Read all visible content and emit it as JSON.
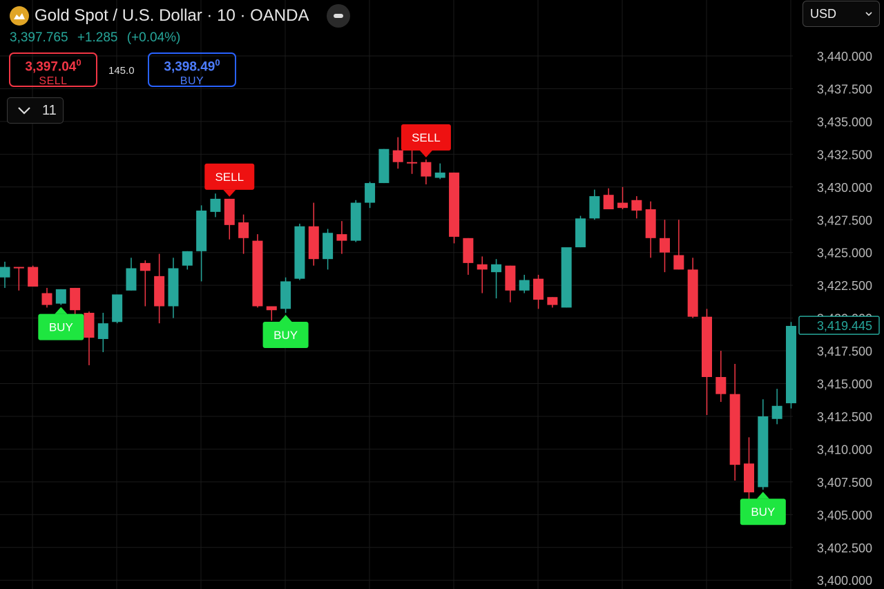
{
  "header": {
    "symbol_title": "Gold Spot / U.S. Dollar · 10 · OANDA",
    "last_price": "3,397.765",
    "change": "+1.285",
    "change_pct": "(+0.04%)"
  },
  "trade": {
    "sell_price": "3,397.04",
    "sell_price_small": "0",
    "sell_label": "SELL",
    "spread": "145.0",
    "buy_price": "3,398.49",
    "buy_price_small": "0",
    "buy_label": "BUY"
  },
  "indicators_toggle": {
    "count": "11"
  },
  "currency": {
    "selected": "USD"
  },
  "colors": {
    "up": "#26a69a",
    "down": "#f23645",
    "buy_marker": "#1ee640",
    "sell_marker": "#ee1111"
  },
  "chart_data": {
    "type": "candlestick",
    "ylim": [
      3398.5,
      3442.5
    ],
    "y_ticks": [
      "3,440.000",
      "3,437.500",
      "3,435.000",
      "3,432.500",
      "3,430.000",
      "3,427.500",
      "3,425.000",
      "3,422.500",
      "3,420.000",
      "3,417.500",
      "3,415.000",
      "3,412.500",
      "3,410.000",
      "3,407.500",
      "3,405.000",
      "3,402.500",
      "3,400.000"
    ],
    "y_tick_values": [
      3440,
      3437.5,
      3435,
      3432.5,
      3430,
      3427.5,
      3425,
      3422.5,
      3420,
      3417.5,
      3415,
      3412.5,
      3410,
      3407.5,
      3405,
      3402.5,
      3400
    ],
    "current_price_label": "3,419.445",
    "current_price": 3419.445,
    "candles": [
      {
        "o": 3423.1,
        "h": 3424.3,
        "l": 3422.3,
        "c": 3423.9
      },
      {
        "o": 3423.9,
        "h": 3423.9,
        "l": 3422.1,
        "c": 3423.8
      },
      {
        "o": 3423.9,
        "h": 3424.0,
        "l": 3422.6,
        "c": 3422.4
      },
      {
        "o": 3421.9,
        "h": 3422.3,
        "l": 3420.8,
        "c": 3421.0
      },
      {
        "o": 3421.1,
        "h": 3422.2,
        "l": 3421.0,
        "c": 3422.2
      },
      {
        "o": 3422.3,
        "h": 3422.3,
        "l": 3420.0,
        "c": 3420.6
      },
      {
        "o": 3420.4,
        "h": 3420.5,
        "l": 3416.4,
        "c": 3418.5
      },
      {
        "o": 3418.4,
        "h": 3420.4,
        "l": 3417.4,
        "c": 3419.6
      },
      {
        "o": 3419.7,
        "h": 3421.8,
        "l": 3419.6,
        "c": 3421.8
      },
      {
        "o": 3422.1,
        "h": 3424.6,
        "l": 3422.1,
        "c": 3423.8
      },
      {
        "o": 3424.2,
        "h": 3424.4,
        "l": 3420.9,
        "c": 3423.6
      },
      {
        "o": 3423.2,
        "h": 3424.9,
        "l": 3419.6,
        "c": 3420.9
      },
      {
        "o": 3420.9,
        "h": 3424.6,
        "l": 3420.0,
        "c": 3423.8
      },
      {
        "o": 3424.0,
        "h": 3425.1,
        "l": 3423.7,
        "c": 3425.1
      },
      {
        "o": 3425.1,
        "h": 3428.6,
        "l": 3422.8,
        "c": 3428.2
      },
      {
        "o": 3428.1,
        "h": 3429.5,
        "l": 3427.7,
        "c": 3429.1
      },
      {
        "o": 3429.1,
        "h": 3429.1,
        "l": 3426.0,
        "c": 3427.1
      },
      {
        "o": 3427.3,
        "h": 3427.9,
        "l": 3424.9,
        "c": 3426.1
      },
      {
        "o": 3425.9,
        "h": 3426.4,
        "l": 3420.8,
        "c": 3420.9
      },
      {
        "o": 3420.9,
        "h": 3420.9,
        "l": 3419.8,
        "c": 3420.6
      },
      {
        "o": 3420.7,
        "h": 3423.1,
        "l": 3420.4,
        "c": 3422.8
      },
      {
        "o": 3423.0,
        "h": 3427.2,
        "l": 3422.9,
        "c": 3427.0
      },
      {
        "o": 3427.0,
        "h": 3428.8,
        "l": 3424.0,
        "c": 3424.5
      },
      {
        "o": 3424.5,
        "h": 3426.8,
        "l": 3423.7,
        "c": 3426.5
      },
      {
        "o": 3426.4,
        "h": 3427.4,
        "l": 3424.9,
        "c": 3425.9
      },
      {
        "o": 3425.9,
        "h": 3429.0,
        "l": 3425.8,
        "c": 3428.8
      },
      {
        "o": 3428.8,
        "h": 3430.4,
        "l": 3428.4,
        "c": 3430.3
      },
      {
        "o": 3430.3,
        "h": 3432.9,
        "l": 3430.3,
        "c": 3432.9
      },
      {
        "o": 3432.8,
        "h": 3433.8,
        "l": 3431.4,
        "c": 3431.9
      },
      {
        "o": 3431.9,
        "h": 3433.1,
        "l": 3431.0,
        "c": 3431.8
      },
      {
        "o": 3431.9,
        "h": 3432.1,
        "l": 3430.2,
        "c": 3430.8
      },
      {
        "o": 3430.7,
        "h": 3431.8,
        "l": 3430.6,
        "c": 3431.1
      },
      {
        "o": 3431.1,
        "h": 3431.1,
        "l": 3425.7,
        "c": 3426.2
      },
      {
        "o": 3426.1,
        "h": 3426.1,
        "l": 3423.3,
        "c": 3424.2
      },
      {
        "o": 3424.1,
        "h": 3424.7,
        "l": 3421.9,
        "c": 3423.7
      },
      {
        "o": 3423.5,
        "h": 3424.5,
        "l": 3421.5,
        "c": 3424.1
      },
      {
        "o": 3424.0,
        "h": 3424.0,
        "l": 3421.2,
        "c": 3422.1
      },
      {
        "o": 3422.1,
        "h": 3423.3,
        "l": 3421.9,
        "c": 3422.9
      },
      {
        "o": 3423.0,
        "h": 3423.3,
        "l": 3420.7,
        "c": 3421.4
      },
      {
        "o": 3421.6,
        "h": 3421.6,
        "l": 3420.8,
        "c": 3421.0
      },
      {
        "o": 3420.8,
        "h": 3425.3,
        "l": 3420.8,
        "c": 3425.4
      },
      {
        "o": 3425.4,
        "h": 3427.8,
        "l": 3425.4,
        "c": 3427.6
      },
      {
        "o": 3427.6,
        "h": 3429.8,
        "l": 3427.5,
        "c": 3429.3
      },
      {
        "o": 3429.4,
        "h": 3429.9,
        "l": 3428.4,
        "c": 3428.3
      },
      {
        "o": 3428.8,
        "h": 3430.0,
        "l": 3428.3,
        "c": 3428.4
      },
      {
        "o": 3429.0,
        "h": 3429.3,
        "l": 3427.6,
        "c": 3428.2
      },
      {
        "o": 3428.3,
        "h": 3428.9,
        "l": 3424.6,
        "c": 3426.1
      },
      {
        "o": 3426.1,
        "h": 3427.5,
        "l": 3423.5,
        "c": 3425.0
      },
      {
        "o": 3424.8,
        "h": 3427.5,
        "l": 3423.7,
        "c": 3423.7
      },
      {
        "o": 3423.7,
        "h": 3424.6,
        "l": 3420.0,
        "c": 3420.1
      },
      {
        "o": 3420.1,
        "h": 3420.7,
        "l": 3412.6,
        "c": 3415.5
      },
      {
        "o": 3415.5,
        "h": 3417.5,
        "l": 3413.6,
        "c": 3414.2
      },
      {
        "o": 3414.2,
        "h": 3416.5,
        "l": 3407.6,
        "c": 3408.8
      },
      {
        "o": 3408.9,
        "h": 3410.9,
        "l": 3405.7,
        "c": 3406.7
      },
      {
        "o": 3407.1,
        "h": 3413.8,
        "l": 3406.9,
        "c": 3412.5
      },
      {
        "o": 3412.3,
        "h": 3414.6,
        "l": 3411.9,
        "c": 3413.3
      },
      {
        "o": 3413.5,
        "h": 3419.7,
        "l": 3413.1,
        "c": 3419.4
      }
    ],
    "signals": [
      {
        "type": "buy",
        "index": 4,
        "label": "BUY"
      },
      {
        "type": "sell",
        "index": 16,
        "label": "SELL"
      },
      {
        "type": "buy",
        "index": 20,
        "label": "BUY"
      },
      {
        "type": "sell",
        "index": 30,
        "label": "SELL"
      },
      {
        "type": "buy",
        "index": 54,
        "label": "BUY"
      }
    ]
  }
}
